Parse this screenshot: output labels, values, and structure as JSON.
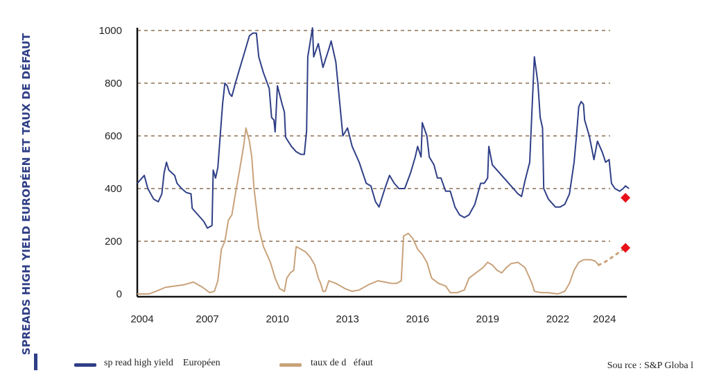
{
  "chart_data": {
    "type": "line",
    "ylabel": "SPREADS HIGH YIELD EUROPÉEN ET TAUX DE DÉFAUT",
    "xlabel": "",
    "xlim": [
      2004,
      2024.6
    ],
    "ylim": [
      0,
      1000
    ],
    "x_ticks": [
      "2004",
      "2007",
      "2010",
      "2013",
      "2016",
      "2019",
      "2022",
      "2024"
    ],
    "y_ticks": [
      "0",
      "200",
      "400",
      "600",
      "800",
      "1000"
    ],
    "grid": "dashed horizontal",
    "series": [
      {
        "name": "sp read high yield    Européen",
        "color": "#2f3f86",
        "points": [
          [
            2004.0,
            420
          ],
          [
            2004.3,
            450
          ],
          [
            2004.45,
            400
          ],
          [
            2004.7,
            360
          ],
          [
            2004.9,
            350
          ],
          [
            2005.05,
            380
          ],
          [
            2005.15,
            460
          ],
          [
            2005.25,
            500
          ],
          [
            2005.35,
            470
          ],
          [
            2005.6,
            450
          ],
          [
            2005.7,
            420
          ],
          [
            2005.9,
            400
          ],
          [
            2006.1,
            385
          ],
          [
            2006.3,
            380
          ],
          [
            2006.35,
            325
          ],
          [
            2006.6,
            300
          ],
          [
            2006.85,
            275
          ],
          [
            2007.0,
            250
          ],
          [
            2007.2,
            260
          ],
          [
            2007.25,
            470
          ],
          [
            2007.35,
            440
          ],
          [
            2007.45,
            480
          ],
          [
            2007.55,
            600
          ],
          [
            2007.65,
            720
          ],
          [
            2007.75,
            800
          ],
          [
            2007.85,
            790
          ],
          [
            2007.95,
            760
          ],
          [
            2008.05,
            750
          ],
          [
            2008.2,
            800
          ],
          [
            2008.4,
            860
          ],
          [
            2008.6,
            920
          ],
          [
            2008.8,
            980
          ],
          [
            2008.95,
            990
          ],
          [
            2009.1,
            990
          ],
          [
            2009.2,
            900
          ],
          [
            2009.4,
            840
          ],
          [
            2009.65,
            780
          ],
          [
            2009.75,
            670
          ],
          [
            2009.85,
            660
          ],
          [
            2009.9,
            615
          ],
          [
            2010.0,
            790
          ],
          [
            2010.2,
            720
          ],
          [
            2010.3,
            690
          ],
          [
            2010.35,
            595
          ],
          [
            2010.6,
            560
          ],
          [
            2010.8,
            540
          ],
          [
            2011.0,
            530
          ],
          [
            2011.15,
            530
          ],
          [
            2011.25,
            620
          ],
          [
            2011.3,
            900
          ],
          [
            2011.5,
            1010
          ],
          [
            2011.55,
            900
          ],
          [
            2011.75,
            950
          ],
          [
            2011.95,
            860
          ],
          [
            2012.2,
            930
          ],
          [
            2012.3,
            960
          ],
          [
            2012.5,
            880
          ],
          [
            2012.8,
            600
          ],
          [
            2013.0,
            630
          ],
          [
            2013.2,
            560
          ],
          [
            2013.5,
            500
          ],
          [
            2013.8,
            420
          ],
          [
            2014.0,
            410
          ],
          [
            2014.2,
            350
          ],
          [
            2014.35,
            330
          ],
          [
            2014.6,
            400
          ],
          [
            2014.8,
            450
          ],
          [
            2015.0,
            420
          ],
          [
            2015.2,
            400
          ],
          [
            2015.45,
            400
          ],
          [
            2015.7,
            460
          ],
          [
            2015.9,
            520
          ],
          [
            2016.0,
            560
          ],
          [
            2016.15,
            520
          ],
          [
            2016.2,
            650
          ],
          [
            2016.4,
            600
          ],
          [
            2016.5,
            520
          ],
          [
            2016.7,
            490
          ],
          [
            2016.85,
            440
          ],
          [
            2017.0,
            440
          ],
          [
            2017.2,
            390
          ],
          [
            2017.4,
            390
          ],
          [
            2017.6,
            330
          ],
          [
            2017.8,
            300
          ],
          [
            2018.0,
            290
          ],
          [
            2018.2,
            300
          ],
          [
            2018.45,
            340
          ],
          [
            2018.7,
            420
          ],
          [
            2018.85,
            420
          ],
          [
            2019.0,
            440
          ],
          [
            2019.05,
            560
          ],
          [
            2019.2,
            490
          ],
          [
            2019.5,
            460
          ],
          [
            2019.8,
            430
          ],
          [
            2020.1,
            400
          ],
          [
            2020.3,
            380
          ],
          [
            2020.45,
            370
          ],
          [
            2020.6,
            430
          ],
          [
            2020.8,
            500
          ],
          [
            2020.9,
            700
          ],
          [
            2021.0,
            900
          ],
          [
            2021.15,
            800
          ],
          [
            2021.25,
            670
          ],
          [
            2021.35,
            630
          ],
          [
            2021.4,
            400
          ],
          [
            2021.6,
            360
          ],
          [
            2021.9,
            330
          ],
          [
            2022.1,
            330
          ],
          [
            2022.3,
            340
          ],
          [
            2022.5,
            380
          ],
          [
            2022.7,
            500
          ],
          [
            2022.8,
            600
          ],
          [
            2022.9,
            710
          ],
          [
            2023.0,
            730
          ],
          [
            2023.1,
            720
          ],
          [
            2023.15,
            660
          ],
          [
            2023.35,
            600
          ],
          [
            2023.55,
            510
          ],
          [
            2023.7,
            580
          ],
          [
            2023.9,
            540
          ],
          [
            2024.05,
            500
          ],
          [
            2024.2,
            510
          ],
          [
            2024.3,
            420
          ],
          [
            2024.45,
            400
          ],
          [
            2024.65,
            390
          ],
          [
            2024.8,
            400
          ],
          [
            2024.9,
            410
          ],
          [
            2025.05,
            400
          ]
        ]
      },
      {
        "name": "taux de d   éfaut",
        "color": "#c8a27a",
        "points": [
          [
            2004.0,
            0
          ],
          [
            2004.5,
            0
          ],
          [
            2004.8,
            10
          ],
          [
            2005.2,
            25
          ],
          [
            2005.6,
            30
          ],
          [
            2006.0,
            35
          ],
          [
            2006.4,
            45
          ],
          [
            2006.8,
            25
          ],
          [
            2007.1,
            5
          ],
          [
            2007.3,
            10
          ],
          [
            2007.45,
            50
          ],
          [
            2007.6,
            170
          ],
          [
            2007.75,
            200
          ],
          [
            2007.9,
            280
          ],
          [
            2008.05,
            300
          ],
          [
            2008.2,
            380
          ],
          [
            2008.4,
            480
          ],
          [
            2008.55,
            560
          ],
          [
            2008.65,
            630
          ],
          [
            2008.8,
            580
          ],
          [
            2008.9,
            520
          ],
          [
            2009.0,
            400
          ],
          [
            2009.2,
            250
          ],
          [
            2009.4,
            180
          ],
          [
            2009.7,
            120
          ],
          [
            2009.9,
            60
          ],
          [
            2010.1,
            20
          ],
          [
            2010.3,
            10
          ],
          [
            2010.4,
            60
          ],
          [
            2010.55,
            80
          ],
          [
            2010.7,
            90
          ],
          [
            2010.8,
            180
          ],
          [
            2011.0,
            170
          ],
          [
            2011.2,
            160
          ],
          [
            2011.4,
            140
          ],
          [
            2011.6,
            110
          ],
          [
            2011.75,
            60
          ],
          [
            2011.85,
            40
          ],
          [
            2011.95,
            10
          ],
          [
            2012.05,
            10
          ],
          [
            2012.2,
            50
          ],
          [
            2012.5,
            40
          ],
          [
            2012.9,
            20
          ],
          [
            2013.2,
            10
          ],
          [
            2013.5,
            15
          ],
          [
            2013.9,
            35
          ],
          [
            2014.3,
            50
          ],
          [
            2014.6,
            45
          ],
          [
            2014.9,
            40
          ],
          [
            2015.1,
            40
          ],
          [
            2015.3,
            50
          ],
          [
            2015.4,
            220
          ],
          [
            2015.6,
            230
          ],
          [
            2015.8,
            210
          ],
          [
            2016.0,
            170
          ],
          [
            2016.2,
            150
          ],
          [
            2016.4,
            120
          ],
          [
            2016.6,
            60
          ],
          [
            2016.9,
            40
          ],
          [
            2017.2,
            30
          ],
          [
            2017.4,
            5
          ],
          [
            2017.7,
            5
          ],
          [
            2018.0,
            15
          ],
          [
            2018.2,
            60
          ],
          [
            2018.5,
            80
          ],
          [
            2018.8,
            100
          ],
          [
            2019.0,
            120
          ],
          [
            2019.2,
            110
          ],
          [
            2019.4,
            90
          ],
          [
            2019.6,
            80
          ],
          [
            2019.8,
            100
          ],
          [
            2020.0,
            115
          ],
          [
            2020.3,
            120
          ],
          [
            2020.6,
            100
          ],
          [
            2020.9,
            40
          ],
          [
            2021.0,
            10
          ],
          [
            2021.3,
            5
          ],
          [
            2021.6,
            5
          ],
          [
            2022.0,
            0
          ],
          [
            2022.3,
            10
          ],
          [
            2022.5,
            40
          ],
          [
            2022.7,
            90
          ],
          [
            2022.9,
            120
          ],
          [
            2023.1,
            130
          ],
          [
            2023.4,
            130
          ],
          [
            2023.6,
            125
          ],
          [
            2023.75,
            110
          ]
        ]
      }
    ],
    "forecast": {
      "points": [
        [
          2023.75,
          110
        ],
        [
          2024.0,
          120
        ],
        [
          2024.5,
          150
        ],
        [
          2024.9,
          175
        ]
      ],
      "color": "#c8a27a",
      "style": "dotted"
    },
    "markers": [
      {
        "x": 2024.9,
        "y": 365,
        "shape": "diamond",
        "color": "#e8101a"
      },
      {
        "x": 2024.9,
        "y": 175,
        "shape": "diamond",
        "color": "#e8101a"
      }
    ]
  },
  "legend": {
    "items": [
      {
        "label": "sp read high yield    Européen",
        "color": "#2f3f86"
      },
      {
        "label": "taux de d   éfaut",
        "color": "#c8a27a"
      }
    ]
  },
  "source": "Sou rce : S&P Globa l",
  "colors": {
    "axis": "#111111",
    "grid": "#8b6f52",
    "text": "#222222"
  }
}
